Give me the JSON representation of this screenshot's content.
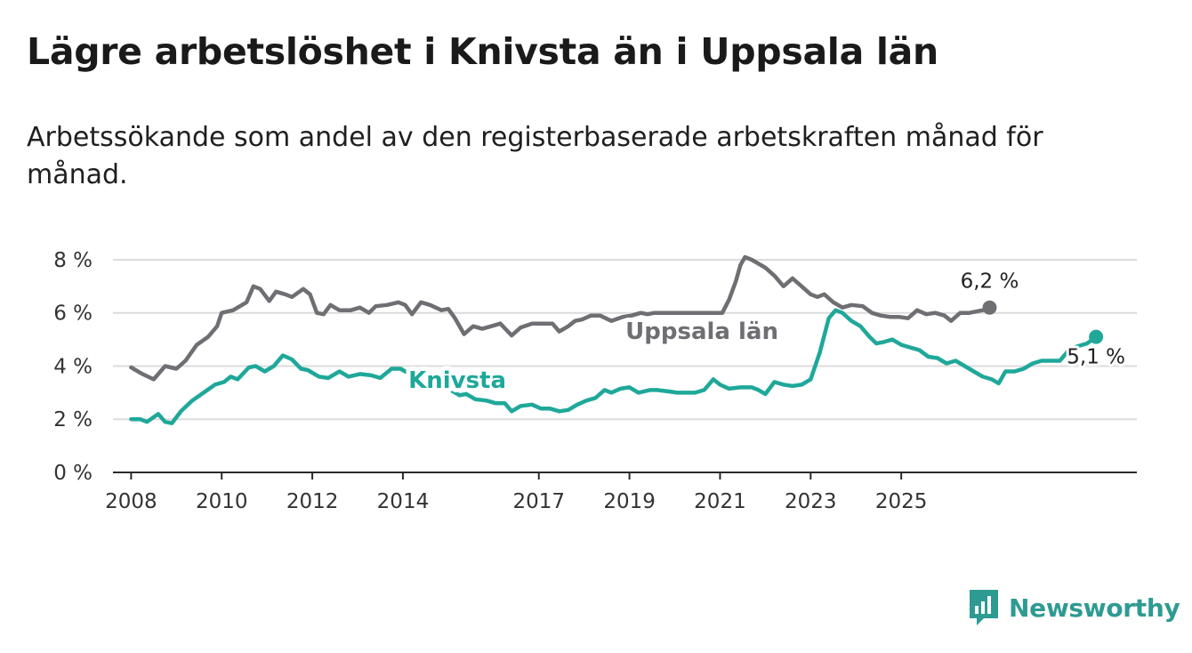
{
  "title": "Lägre arbetslöshet i Knivsta än i Uppsala län",
  "subtitle": "Arbetssökande som andel av den registerbaserade arbetskraften månad för månad.",
  "brand": {
    "name": "Newsworthy",
    "icon": "bar-chart-logo-icon",
    "color": "#2e9b92"
  },
  "chart_data": {
    "type": "line",
    "y_ticks": [
      "0 %",
      "2 %",
      "4 %",
      "6 %",
      "8 %"
    ],
    "y_values": [
      0,
      2,
      4,
      6,
      8
    ],
    "x_ticks": [
      "2008",
      "2010",
      "2012",
      "2014",
      "2017",
      "2019",
      "2021",
      "2023",
      "2025"
    ],
    "x_tick_values": [
      2008.0,
      2010.0,
      2012.0,
      2014.0,
      2017.0,
      2019.0,
      2021.0,
      2023.0,
      2025.0
    ],
    "ylim": [
      0,
      8.4
    ],
    "grid": true,
    "series": [
      {
        "name": "Uppsala län",
        "color": "#6e6e73",
        "end_label": "6,2 %",
        "points": [
          [
            2008.0,
            3.95
          ],
          [
            2008.25,
            3.7
          ],
          [
            2008.5,
            3.5
          ],
          [
            2008.75,
            4.0
          ],
          [
            2009.0,
            3.9
          ],
          [
            2009.2,
            4.2
          ],
          [
            2009.45,
            4.8
          ],
          [
            2009.7,
            5.1
          ],
          [
            2009.9,
            5.5
          ],
          [
            2010.0,
            6.0
          ],
          [
            2010.25,
            6.1
          ],
          [
            2010.55,
            6.4
          ],
          [
            2010.7,
            7.0
          ],
          [
            2010.85,
            6.9
          ],
          [
            2011.05,
            6.45
          ],
          [
            2011.2,
            6.8
          ],
          [
            2011.4,
            6.7
          ],
          [
            2011.55,
            6.6
          ],
          [
            2011.8,
            6.9
          ],
          [
            2011.95,
            6.7
          ],
          [
            2012.1,
            6.0
          ],
          [
            2012.25,
            5.95
          ],
          [
            2012.4,
            6.3
          ],
          [
            2012.6,
            6.1
          ],
          [
            2012.85,
            6.1
          ],
          [
            2013.05,
            6.2
          ],
          [
            2013.25,
            6.0
          ],
          [
            2013.4,
            6.25
          ],
          [
            2013.65,
            6.3
          ],
          [
            2013.9,
            6.4
          ],
          [
            2014.05,
            6.3
          ],
          [
            2014.2,
            5.95
          ],
          [
            2014.4,
            6.4
          ],
          [
            2014.6,
            6.3
          ],
          [
            2014.85,
            6.1
          ],
          [
            2015.0,
            6.15
          ],
          [
            2015.15,
            5.8
          ],
          [
            2015.35,
            5.2
          ],
          [
            2015.55,
            5.5
          ],
          [
            2015.75,
            5.4
          ],
          [
            2015.95,
            5.5
          ],
          [
            2016.15,
            5.6
          ],
          [
            2016.4,
            5.15
          ],
          [
            2016.6,
            5.45
          ],
          [
            2016.85,
            5.6
          ],
          [
            2017.05,
            5.6
          ],
          [
            2017.3,
            5.6
          ],
          [
            2017.45,
            5.3
          ],
          [
            2017.65,
            5.5
          ],
          [
            2017.8,
            5.7
          ],
          [
            2017.95,
            5.75
          ],
          [
            2018.15,
            5.9
          ],
          [
            2018.35,
            5.9
          ],
          [
            2018.6,
            5.7
          ],
          [
            2018.85,
            5.85
          ],
          [
            2019.05,
            5.9
          ],
          [
            2019.25,
            6.0
          ],
          [
            2019.4,
            5.95
          ],
          [
            2019.55,
            6.0
          ],
          [
            2021.05,
            6.0
          ],
          [
            2021.2,
            6.5
          ],
          [
            2021.35,
            7.2
          ],
          [
            2021.45,
            7.8
          ],
          [
            2021.55,
            8.1
          ],
          [
            2021.7,
            8.0
          ],
          [
            2021.85,
            7.85
          ],
          [
            2022.0,
            7.7
          ],
          [
            2022.2,
            7.4
          ],
          [
            2022.4,
            7.0
          ],
          [
            2022.6,
            7.3
          ],
          [
            2022.8,
            7.0
          ],
          [
            2023.0,
            6.7
          ],
          [
            2023.15,
            6.6
          ],
          [
            2023.3,
            6.7
          ],
          [
            2023.5,
            6.4
          ],
          [
            2023.7,
            6.2
          ],
          [
            2023.9,
            6.3
          ],
          [
            2024.15,
            6.25
          ],
          [
            2024.35,
            6.0
          ],
          [
            2024.55,
            5.9
          ],
          [
            2024.75,
            5.85
          ],
          [
            2024.95,
            5.85
          ],
          [
            2025.15,
            5.8
          ],
          [
            2025.35,
            6.1
          ],
          [
            2025.55,
            5.95
          ],
          [
            2025.75,
            6.0
          ],
          [
            2025.95,
            5.9
          ],
          [
            2026.1,
            5.7
          ],
          [
            2026.3,
            6.0
          ],
          [
            2026.5,
            6.0
          ],
          [
            2026.8,
            6.1
          ],
          [
            2026.95,
            6.2
          ]
        ]
      },
      {
        "name": "Knivsta",
        "color": "#1fa89a",
        "end_label": "5,1 %",
        "points": [
          [
            2008.0,
            2.0
          ],
          [
            2008.2,
            2.0
          ],
          [
            2008.35,
            1.9
          ],
          [
            2008.6,
            2.2
          ],
          [
            2008.75,
            1.9
          ],
          [
            2008.9,
            1.85
          ],
          [
            2009.1,
            2.3
          ],
          [
            2009.35,
            2.7
          ],
          [
            2009.6,
            3.0
          ],
          [
            2009.85,
            3.3
          ],
          [
            2010.05,
            3.4
          ],
          [
            2010.2,
            3.6
          ],
          [
            2010.35,
            3.5
          ],
          [
            2010.6,
            3.95
          ],
          [
            2010.75,
            4.0
          ],
          [
            2010.95,
            3.8
          ],
          [
            2011.15,
            4.0
          ],
          [
            2011.35,
            4.4
          ],
          [
            2011.55,
            4.25
          ],
          [
            2011.75,
            3.9
          ],
          [
            2011.9,
            3.85
          ],
          [
            2012.15,
            3.6
          ],
          [
            2012.35,
            3.55
          ],
          [
            2012.6,
            3.8
          ],
          [
            2012.8,
            3.6
          ],
          [
            2013.05,
            3.7
          ],
          [
            2013.3,
            3.65
          ],
          [
            2013.5,
            3.55
          ],
          [
            2013.75,
            3.9
          ],
          [
            2013.95,
            3.9
          ],
          [
            2014.05,
            3.8
          ],
          [
            2015.05,
            3.1
          ],
          [
            2015.25,
            2.9
          ],
          [
            2015.4,
            2.95
          ],
          [
            2015.6,
            2.75
          ],
          [
            2015.85,
            2.7
          ],
          [
            2016.05,
            2.6
          ],
          [
            2016.25,
            2.6
          ],
          [
            2016.4,
            2.3
          ],
          [
            2016.6,
            2.5
          ],
          [
            2016.85,
            2.55
          ],
          [
            2017.05,
            2.4
          ],
          [
            2017.25,
            2.4
          ],
          [
            2017.45,
            2.3
          ],
          [
            2017.65,
            2.35
          ],
          [
            2017.85,
            2.55
          ],
          [
            2018.05,
            2.7
          ],
          [
            2018.25,
            2.8
          ],
          [
            2018.45,
            3.1
          ],
          [
            2018.6,
            3.0
          ],
          [
            2018.8,
            3.15
          ],
          [
            2019.0,
            3.2
          ],
          [
            2019.2,
            3.0
          ],
          [
            2019.45,
            3.1
          ],
          [
            2019.6,
            3.1
          ],
          [
            2019.85,
            3.05
          ],
          [
            2020.05,
            3.0
          ],
          [
            2020.25,
            3.0
          ],
          [
            2020.45,
            3.0
          ],
          [
            2020.65,
            3.1
          ],
          [
            2020.85,
            3.5
          ],
          [
            2021.0,
            3.3
          ],
          [
            2021.2,
            3.15
          ],
          [
            2021.45,
            3.2
          ],
          [
            2021.7,
            3.2
          ],
          [
            2021.85,
            3.1
          ],
          [
            2022.0,
            2.95
          ],
          [
            2022.2,
            3.4
          ],
          [
            2022.4,
            3.3
          ],
          [
            2022.6,
            3.25
          ],
          [
            2022.8,
            3.3
          ],
          [
            2023.0,
            3.5
          ],
          [
            2023.2,
            4.5
          ],
          [
            2023.4,
            5.8
          ],
          [
            2023.55,
            6.1
          ],
          [
            2023.7,
            6.0
          ],
          [
            2023.9,
            5.7
          ],
          [
            2024.1,
            5.5
          ],
          [
            2024.3,
            5.1
          ],
          [
            2024.45,
            4.85
          ],
          [
            2024.6,
            4.9
          ],
          [
            2024.8,
            5.0
          ],
          [
            2025.0,
            4.8
          ],
          [
            2025.2,
            4.7
          ],
          [
            2025.4,
            4.6
          ],
          [
            2025.6,
            4.35
          ],
          [
            2025.8,
            4.3
          ],
          [
            2026.0,
            4.1
          ],
          [
            2026.2,
            4.2
          ],
          [
            2026.4,
            4.0
          ],
          [
            2026.6,
            3.8
          ],
          [
            2026.8,
            3.6
          ],
          [
            2027.0,
            3.5
          ],
          [
            2027.15,
            3.35
          ],
          [
            2027.3,
            3.8
          ],
          [
            2027.5,
            3.8
          ],
          [
            2027.7,
            3.9
          ],
          [
            2027.9,
            4.1
          ],
          [
            2028.1,
            4.2
          ],
          [
            2028.3,
            4.2
          ],
          [
            2028.5,
            4.2
          ],
          [
            2028.7,
            4.6
          ],
          [
            2028.9,
            4.75
          ],
          [
            2029.1,
            4.85
          ],
          [
            2029.3,
            5.1
          ]
        ]
      }
    ]
  }
}
